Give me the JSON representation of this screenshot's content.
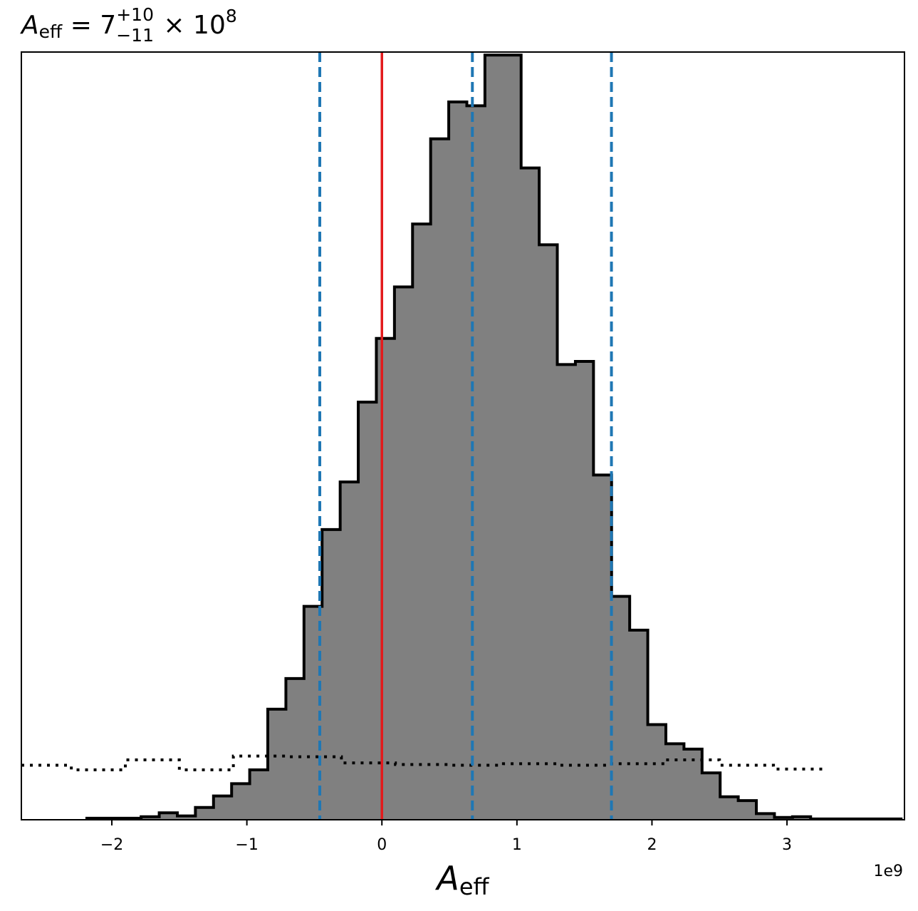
{
  "chart_data": {
    "type": "histogram",
    "title": {
      "symbol": "A",
      "symbol_sub": "eff",
      "equals": " = 7",
      "sup": "+10",
      "sub": "−11",
      "times": " × 10",
      "exp": "8"
    },
    "xlabel": {
      "symbol": "A",
      "sub": "eff"
    },
    "x_offset_label": "1e9",
    "xlim": [
      -2.67,
      3.87
    ],
    "ylim": [
      0,
      1.0
    ],
    "x_ticks": [
      {
        "value": -2,
        "label": "−2"
      },
      {
        "value": -1,
        "label": "−1"
      },
      {
        "value": 0,
        "label": "0"
      },
      {
        "value": 1,
        "label": "1"
      },
      {
        "value": 2,
        "label": "2"
      },
      {
        "value": 3,
        "label": "3"
      }
    ],
    "bin_width": 0.134,
    "bin_start": -2.185,
    "histogram_counts": [
      0.002,
      0.002,
      0.002,
      0.004,
      0.009,
      0.005,
      0.016,
      0.031,
      0.047,
      0.065,
      0.144,
      0.184,
      0.278,
      0.378,
      0.44,
      0.544,
      0.627,
      0.694,
      0.776,
      0.887,
      0.935,
      0.93,
      0.996,
      0.996,
      0.849,
      0.749,
      0.593,
      0.597,
      0.449,
      0.291,
      0.247,
      0.124,
      0.099,
      0.092,
      0.061,
      0.03,
      0.025,
      0.008,
      0.003,
      0.004,
      0.001,
      0.001,
      0.001,
      0.001,
      0.001
    ],
    "prior_bin_width": 0.4,
    "prior_start": -2.7,
    "prior_counts": [
      0.071,
      0.065,
      0.078,
      0.065,
      0.083,
      0.082,
      0.074,
      0.072,
      0.071,
      0.073,
      0.071,
      0.073,
      0.078,
      0.071,
      0.066
    ],
    "true_value": 0,
    "quantile_lines": [
      -0.46,
      0.67,
      1.7
    ],
    "colors": {
      "fill": "#808080",
      "edge": "#000000",
      "true_line": "#e31a1c",
      "quantile_line": "#1f77b4",
      "prior_line": "#000000"
    }
  }
}
